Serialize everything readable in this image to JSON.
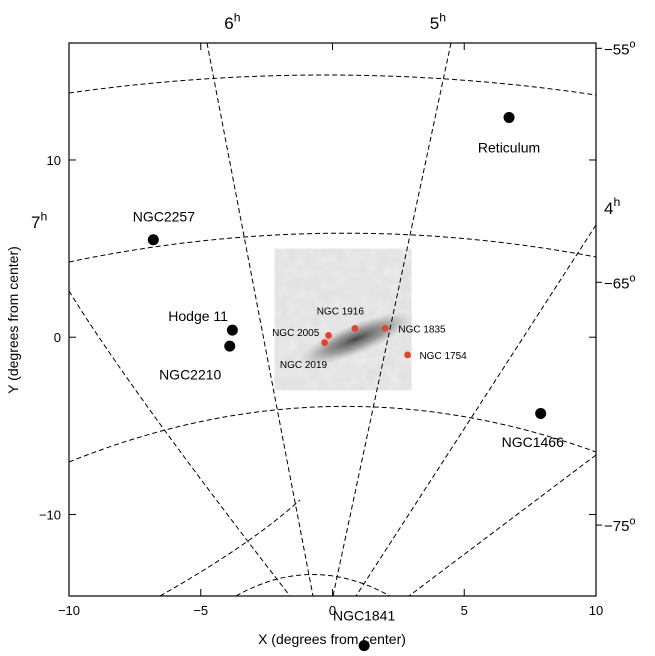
{
  "chart_data": {
    "type": "scatter",
    "xlabel": "X (degrees from center)",
    "ylabel": "Y (degrees from center)",
    "xlim": [
      -10,
      10
    ],
    "ylim": [
      -14.6,
      16.6
    ],
    "x_ticks": [
      -10,
      -5,
      0,
      5,
      10
    ],
    "x_tick_labels": [
      "−10",
      "−5",
      "0",
      "5",
      "10"
    ],
    "y_ticks": [
      -10,
      0,
      10
    ],
    "y_tick_labels": [
      "−10",
      "0",
      "10"
    ],
    "grid": false,
    "right_ticks": [
      {
        "y": 16.3,
        "label_main": "−55",
        "label_sup": "o"
      },
      {
        "y": 3.1,
        "label_main": "−65",
        "label_sup": "o"
      },
      {
        "y": -10.6,
        "label_main": "−75",
        "label_sup": "o"
      }
    ],
    "ra_labels": [
      {
        "name": "6h",
        "main": "6",
        "sup": "h",
        "edge": "top",
        "x": -3.8
      },
      {
        "name": "5h",
        "main": "5",
        "sup": "h",
        "edge": "top",
        "x": 4.0
      },
      {
        "name": "7h",
        "main": "7",
        "sup": "h",
        "edge": "left",
        "y": 6.5
      },
      {
        "name": "4h",
        "main": "4",
        "sup": "h",
        "edge": "right",
        "y": 7.3
      }
    ],
    "inset_image": {
      "x": [
        -2.2,
        3.0
      ],
      "y": [
        -3.0,
        5.0
      ],
      "color": "#e3e3e3"
    },
    "clusters_large": [
      {
        "name": "Reticulum",
        "label": "Reticulum",
        "x": 6.7,
        "y": 12.4,
        "label_x": 6.7,
        "label_y": 10.7,
        "anchor": "middle"
      },
      {
        "name": "NGC2257",
        "label": "NGC2257",
        "x": -6.8,
        "y": 5.5,
        "label_x": -6.4,
        "label_y": 6.8,
        "anchor": "middle"
      },
      {
        "name": "Hodge 11",
        "label": "Hodge 11",
        "x": -3.8,
        "y": 0.4,
        "label_x": -5.1,
        "label_y": 1.2,
        "anchor": "middle"
      },
      {
        "name": "NGC2210",
        "label": "NGC2210",
        "x": -3.9,
        "y": -0.5,
        "label_x": -5.4,
        "label_y": -2.1,
        "anchor": "middle"
      },
      {
        "name": "NGC1466",
        "label": "NGC1466",
        "x": 7.9,
        "y": -4.3,
        "label_x": 7.6,
        "label_y": -5.9,
        "anchor": "middle"
      },
      {
        "name": "NGC1841",
        "label": "NGC1841",
        "x": 1.2,
        "y": -17.4,
        "label_x": 1.2,
        "label_y": -15.7,
        "anchor": "middle"
      }
    ],
    "clusters_small": [
      {
        "name": "NGC 1916",
        "label": "NGC 1916",
        "x": 0.85,
        "y": 0.5,
        "label_x": -0.6,
        "label_y": 1.5,
        "anchor": "start"
      },
      {
        "name": "NGC 2005",
        "label": "NGC 2005",
        "x": -0.15,
        "y": 0.1,
        "label_x": -0.5,
        "label_y": 0.3,
        "anchor": "end"
      },
      {
        "name": "NGC 2019",
        "label": "NGC 2019",
        "x": -0.3,
        "y": -0.3,
        "label_x": -1.1,
        "label_y": -1.5,
        "anchor": "middle"
      },
      {
        "name": "NGC 1835",
        "label": "NGC 1835",
        "x": 2.0,
        "y": 0.5,
        "label_x": 2.5,
        "label_y": 0.5,
        "anchor": "start"
      },
      {
        "name": "NGC 1754",
        "label": "NGC 1754",
        "x": 2.85,
        "y": -1.0,
        "label_x": 3.3,
        "label_y": -1.0,
        "anchor": "start"
      }
    ],
    "colors": {
      "large_marker": "#000000",
      "small_marker": "#e8432a",
      "curves": "#000000"
    }
  }
}
